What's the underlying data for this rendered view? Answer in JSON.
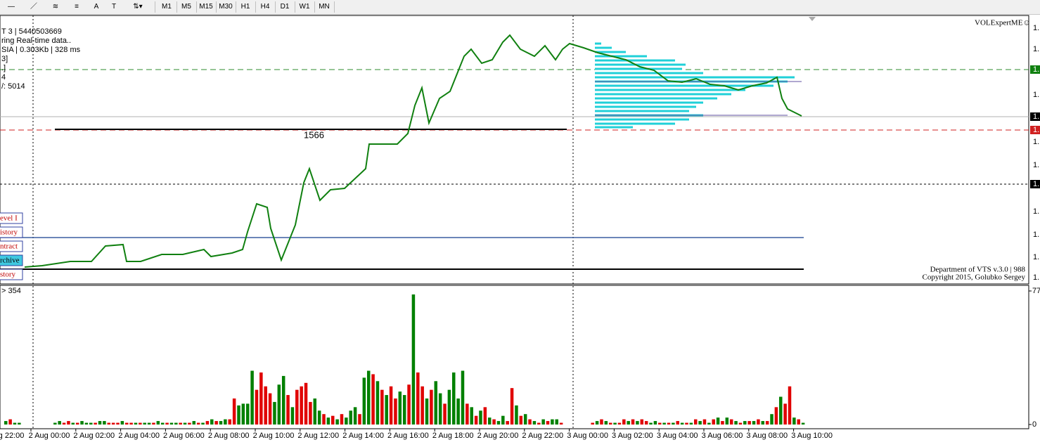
{
  "toolbar": {
    "timeframes": [
      "M1",
      "M5",
      "M15",
      "M30",
      "H1",
      "H4",
      "D1",
      "W1",
      "MN"
    ]
  },
  "indicator_name": "VOLExpertME☺",
  "info_lines": [
    "T 3 | 5440503669",
    "ring Real-time data..",
    "SIA | 0.303Kb | 328 ms",
    "3]",
    ".]",
    "4",
    "/: 5014"
  ],
  "level_label": "1566",
  "buttons": [
    "evel I",
    "istory",
    "ntract",
    "rchive",
    "story"
  ],
  "copyright": [
    "Department of VTS  v.3.0 | 988",
    "Copyright 2015, Golubko Sergey"
  ],
  "volume_info": "> 354",
  "price_axis_labels": [
    "1.",
    "1.",
    "1.",
    "1.",
    "1.",
    "1.",
    "1.",
    "1.",
    "1.",
    "1.",
    "1.",
    "1.",
    "1."
  ],
  "x_labels": [
    "g 22:00",
    "2 Aug 00:00",
    "2 Aug 02:00",
    "2 Aug 04:00",
    "2 Aug 06:00",
    "2 Aug 08:00",
    "2 Aug 10:00",
    "2 Aug 12:00",
    "2 Aug 14:00",
    "2 Aug 16:00",
    "2 Aug 18:00",
    "2 Aug 20:00",
    "2 Aug 22:00",
    "3 Aug 00:00",
    "3 Aug 02:00",
    "3 Aug 04:00",
    "3 Aug 06:00",
    "3 Aug 08:00",
    "3 Aug 10:00"
  ],
  "chart_data": {
    "type": "bar",
    "ylim": [
      0,
      77
    ],
    "yticks": [
      0,
      77
    ],
    "values": [
      2,
      3,
      1,
      1,
      0,
      0,
      0,
      0,
      0,
      0,
      0,
      1,
      2,
      1,
      2,
      1,
      1,
      2,
      1,
      1,
      1,
      2,
      2,
      1,
      1,
      1,
      2,
      1,
      1,
      1,
      1,
      1,
      1,
      1,
      2,
      1,
      1,
      1,
      1,
      1,
      1,
      1,
      2,
      1,
      1,
      2,
      3,
      2,
      2,
      3,
      3,
      15,
      11,
      12,
      12,
      31,
      20,
      30,
      22,
      18,
      13,
      23,
      28,
      17,
      10,
      20,
      22,
      24,
      13,
      15,
      8,
      6,
      4,
      5,
      3,
      6,
      4,
      8,
      10,
      6,
      27,
      31,
      29,
      25,
      20,
      17,
      22,
      15,
      19,
      17,
      23,
      75,
      30,
      22,
      15,
      20,
      25,
      18,
      12,
      20,
      30,
      15,
      31,
      12,
      10,
      5,
      8,
      10,
      4,
      3,
      2,
      5,
      2,
      21,
      11,
      5,
      6,
      3,
      2,
      1,
      3,
      2,
      3,
      3,
      1,
      0,
      0,
      0,
      0,
      0,
      0,
      1,
      2,
      3,
      2,
      1,
      1,
      1,
      3,
      2,
      3,
      2,
      3,
      2,
      1,
      2,
      1,
      1,
      1,
      1,
      2,
      1,
      1,
      1,
      3,
      2,
      3,
      1,
      3,
      4,
      2,
      4,
      3,
      2,
      1,
      2,
      2,
      2,
      3,
      2,
      2,
      6,
      10,
      16,
      12,
      22,
      4,
      3,
      1
    ],
    "colors": [
      "#008000",
      "#e00000",
      "#008000",
      "#008000",
      "#008000",
      "#008000",
      "#008000",
      "#008000",
      "#008000",
      "#008000",
      "#008000",
      "#008000",
      "#008000",
      "#e00000",
      "#e00000",
      "#008000",
      "#e00000",
      "#008000",
      "#008000",
      "#008000",
      "#e00000",
      "#008000",
      "#008000",
      "#e00000",
      "#e00000",
      "#e00000",
      "#008000",
      "#e00000",
      "#e00000",
      "#008000",
      "#e00000",
      "#008000",
      "#008000",
      "#e00000",
      "#008000",
      "#008000",
      "#e00000",
      "#008000",
      "#008000",
      "#e00000",
      "#008000",
      "#e00000",
      "#008000",
      "#e00000",
      "#008000",
      "#e00000",
      "#008000",
      "#e00000",
      "#008000",
      "#008000",
      "#e00000",
      "#e00000",
      "#008000",
      "#008000",
      "#008000",
      "#008000",
      "#e00000",
      "#e00000",
      "#e00000",
      "#e00000",
      "#008000",
      "#008000",
      "#008000",
      "#e00000",
      "#008000",
      "#e00000",
      "#e00000",
      "#e00000",
      "#e00000",
      "#008000",
      "#008000",
      "#e00000",
      "#008000",
      "#e00000",
      "#008000",
      "#e00000",
      "#008000",
      "#008000",
      "#008000",
      "#e00000",
      "#008000",
      "#008000",
      "#e00000",
      "#008000",
      "#e00000",
      "#008000",
      "#e00000",
      "#e00000",
      "#008000",
      "#008000",
      "#e00000",
      "#008000",
      "#e00000",
      "#e00000",
      "#008000",
      "#e00000",
      "#008000",
      "#008000",
      "#e00000",
      "#008000",
      "#008000",
      "#008000",
      "#008000",
      "#e00000",
      "#008000",
      "#e00000",
      "#008000",
      "#e00000",
      "#008000",
      "#e00000",
      "#008000",
      "#008000",
      "#e00000",
      "#e00000",
      "#008000",
      "#e00000",
      "#008000",
      "#e00000",
      "#008000",
      "#e00000",
      "#008000",
      "#e00000",
      "#008000",
      "#008000",
      "#e00000",
      "#008000",
      "#008000",
      "#008000",
      "#008000",
      "#008000",
      "#008000",
      "#e00000",
      "#008000",
      "#e00000",
      "#008000",
      "#e00000",
      "#008000",
      "#e00000",
      "#e00000",
      "#008000",
      "#e00000",
      "#008000",
      "#e00000",
      "#e00000",
      "#008000",
      "#008000",
      "#e00000",
      "#008000",
      "#e00000",
      "#008000",
      "#e00000",
      "#008000",
      "#e00000",
      "#008000",
      "#e00000",
      "#008000",
      "#e00000",
      "#008000",
      "#e00000",
      "#008000",
      "#e00000",
      "#008000",
      "#e00000",
      "#008000",
      "#e00000",
      "#008000",
      "#e00000",
      "#008000",
      "#e00000",
      "#008000",
      "#e00000",
      "#008000",
      "#e00000",
      "#008000",
      "#e00000",
      "#e00000",
      "#008000",
      "#e00000",
      "#008000"
    ]
  }
}
